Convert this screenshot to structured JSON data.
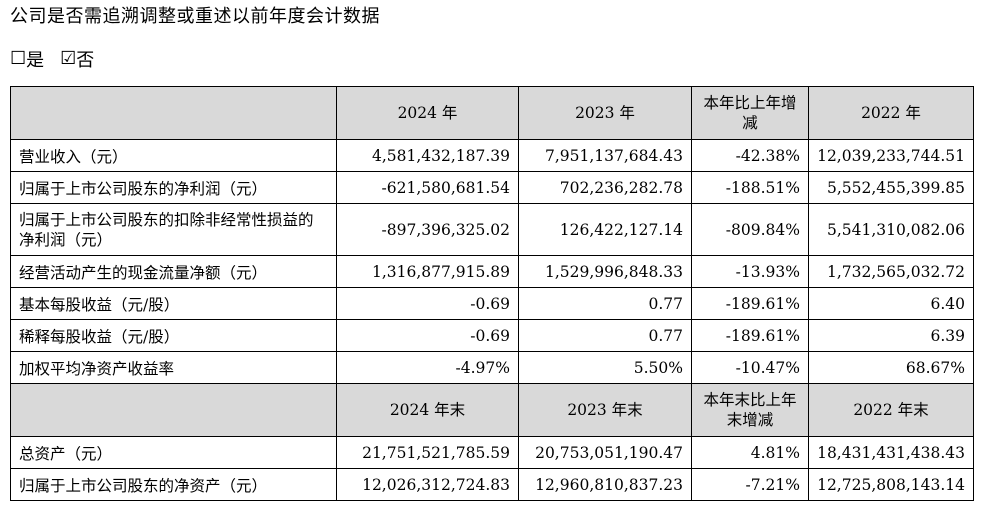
{
  "title": "公司是否需追溯调整或重述以前年度会计数据",
  "options": {
    "yes_box": "☐",
    "yes_label": "是",
    "no_box": "☑",
    "no_label": "否"
  },
  "table": {
    "header1": [
      "",
      "2024 年",
      "2023 年",
      "本年比上年增减",
      "2022 年"
    ],
    "rows1": [
      {
        "label": "营业收入（元）",
        "v2024": "4,581,432,187.39",
        "v2023": "7,951,137,684.43",
        "change": "-42.38%",
        "v2022": "12,039,233,744.51"
      },
      {
        "label": "归属于上市公司股东的净利润（元）",
        "v2024": "-621,580,681.54",
        "v2023": "702,236,282.78",
        "change": "-188.51%",
        "v2022": "5,552,455,399.85"
      },
      {
        "label": "归属于上市公司股东的扣除非经常性损益的净利润（元）",
        "v2024": "-897,396,325.02",
        "v2023": "126,422,127.14",
        "change": "-809.84%",
        "v2022": "5,541,310,082.06"
      },
      {
        "label": "经营活动产生的现金流量净额（元）",
        "v2024": "1,316,877,915.89",
        "v2023": "1,529,996,848.33",
        "change": "-13.93%",
        "v2022": "1,732,565,032.72"
      },
      {
        "label": "基本每股收益（元/股）",
        "v2024": "-0.69",
        "v2023": "0.77",
        "change": "-189.61%",
        "v2022": "6.40"
      },
      {
        "label": "稀释每股收益（元/股）",
        "v2024": "-0.69",
        "v2023": "0.77",
        "change": "-189.61%",
        "v2022": "6.39"
      },
      {
        "label": "加权平均净资产收益率",
        "v2024": "-4.97%",
        "v2023": "5.50%",
        "change": "-10.47%",
        "v2022": "68.67%"
      }
    ],
    "header2": [
      "",
      "2024 年末",
      "2023 年末",
      "本年末比上年末增减",
      "2022 年末"
    ],
    "rows2": [
      {
        "label": "总资产（元）",
        "v2024": "21,751,521,785.59",
        "v2023": "20,753,051,190.47",
        "change": "4.81%",
        "v2022": "18,431,431,438.43"
      },
      {
        "label": "归属于上市公司股东的净资产（元）",
        "v2024": "12,026,312,724.83",
        "v2023": "12,960,810,837.23",
        "change": "-7.21%",
        "v2022": "12,725,808,143.14"
      }
    ]
  }
}
